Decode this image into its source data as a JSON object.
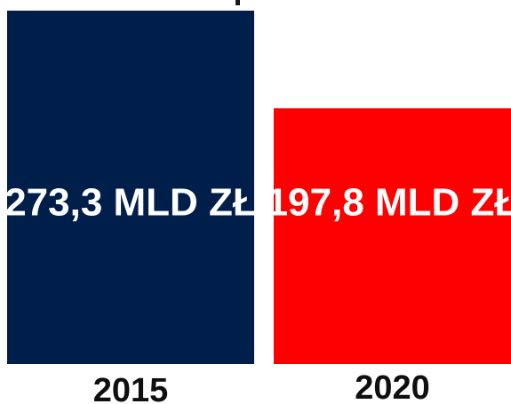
{
  "chart_data": {
    "type": "bar",
    "categories": [
      "2015",
      "2020"
    ],
    "values": [
      273.3,
      197.8
    ],
    "data_labels": [
      "273,3 MLD ZŁ",
      "197,8 MLD ZŁ"
    ],
    "unit": "MLD ZŁ",
    "colors": [
      "#001e4a",
      "#ff0000"
    ],
    "title": "",
    "xlabel": "",
    "ylabel": "",
    "grid": false,
    "legend": "none"
  }
}
